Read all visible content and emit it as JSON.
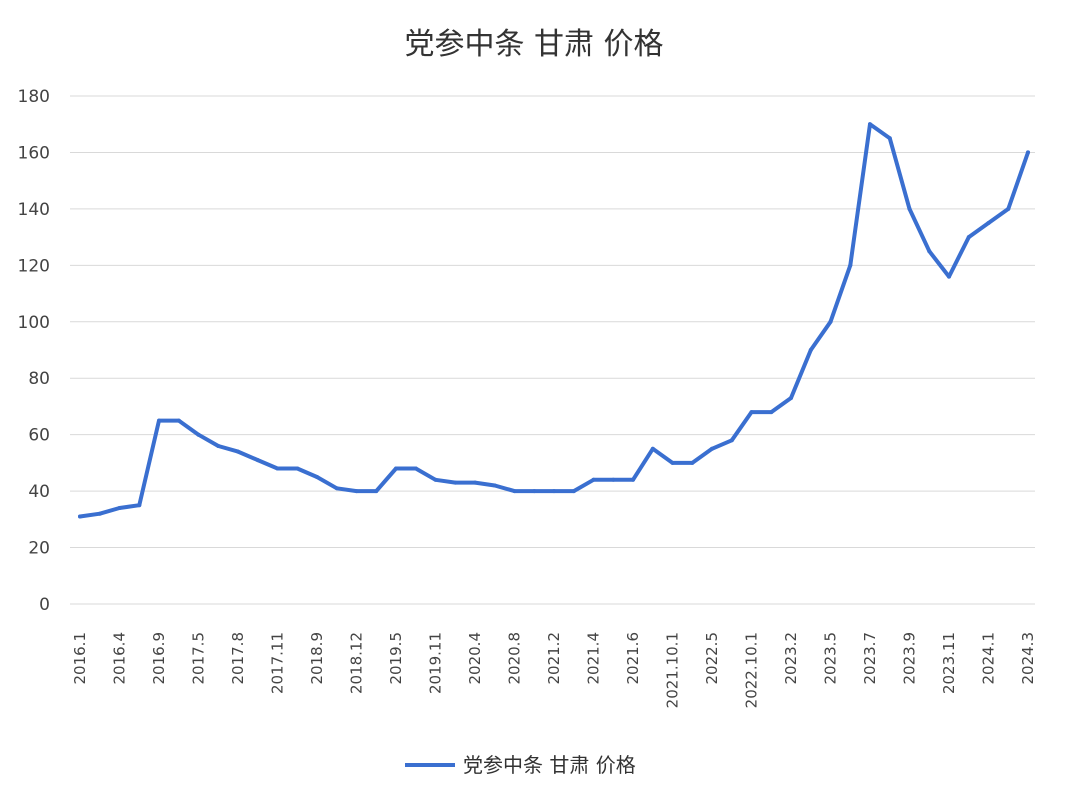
{
  "chart_data": {
    "type": "line",
    "title": "党参中条 甘肃 价格",
    "xlabel": "",
    "ylabel": "",
    "ylim": [
      0,
      180
    ],
    "yticks": [
      0,
      20,
      40,
      60,
      80,
      100,
      120,
      140,
      160,
      180
    ],
    "grid": true,
    "legend_position": "bottom",
    "x_tick_labels": [
      "2016.1",
      "2016.4",
      "2016.9",
      "2017.5",
      "2017.8",
      "2017.11",
      "2018.9",
      "2018.12",
      "2019.5",
      "2019.11",
      "2020.4",
      "2020.8",
      "2021.2",
      "2021.4",
      "2021.6",
      "2021.10.1",
      "2022.5",
      "2022.10.1",
      "2023.2",
      "2023.5",
      "2023.7",
      "2023.9",
      "2023.11",
      "2024.1",
      "2024.3"
    ],
    "series": [
      {
        "name": "党参中条 甘肃 价格",
        "color": "#3a6fd0",
        "values": [
          31,
          32,
          34,
          35,
          65,
          65,
          60,
          56,
          54,
          51,
          48,
          48,
          45,
          41,
          40,
          40,
          48,
          48,
          44,
          43,
          43,
          42,
          40,
          40,
          40,
          40,
          44,
          44,
          44,
          55,
          50,
          50,
          55,
          58,
          68,
          68,
          73,
          90,
          100,
          120,
          170,
          165,
          140,
          125,
          116,
          130,
          135,
          140,
          160
        ]
      }
    ]
  }
}
